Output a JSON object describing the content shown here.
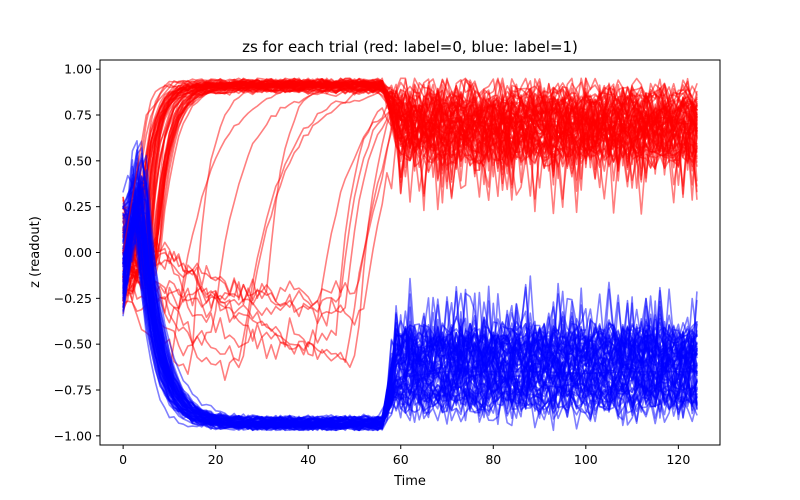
{
  "chart_data": {
    "type": "line",
    "title": "zs for each trial (red: label=0, blue: label=1)",
    "xlabel": "Time",
    "ylabel": "z (readout)",
    "xlim": [
      -5,
      129
    ],
    "ylim": [
      -1.05,
      1.05
    ],
    "x_ticks": [
      0,
      20,
      40,
      60,
      80,
      100,
      120
    ],
    "y_ticks": [
      -1.0,
      -0.75,
      -0.5,
      -0.25,
      0.0,
      0.25,
      0.5,
      0.75,
      1.0
    ],
    "x_tick_labels": [
      "0",
      "20",
      "40",
      "60",
      "80",
      "100",
      "120"
    ],
    "y_tick_labels": [
      "−1.00",
      "−0.75",
      "−0.50",
      "−0.25",
      "0.00",
      "0.25",
      "0.50",
      "0.75",
      "1.00"
    ],
    "grid": false,
    "legend": "none",
    "series_style": {
      "label0_color": "#ff0000",
      "label1_color": "#0000ff",
      "alpha": 0.5
    },
    "series": [
      {
        "label": "label=0",
        "color": "#ff0000",
        "x": [
          0,
          5,
          10,
          15,
          20,
          30,
          40,
          50,
          55,
          60,
          70,
          80,
          90,
          100,
          110,
          124
        ],
        "values": [
          0.0,
          0.75,
          0.9,
          0.92,
          0.92,
          0.92,
          0.92,
          0.92,
          0.88,
          0.72,
          0.72,
          0.7,
          0.72,
          0.7,
          0.72,
          0.7
        ]
      },
      {
        "label": "label=1",
        "color": "#0000ff",
        "x": [
          0,
          5,
          10,
          15,
          20,
          30,
          40,
          50,
          55,
          60,
          70,
          80,
          90,
          100,
          110,
          124
        ],
        "values": [
          0.0,
          0.1,
          -0.7,
          -0.92,
          -0.93,
          -0.94,
          -0.94,
          -0.93,
          -0.9,
          -0.68,
          -0.65,
          -0.65,
          -0.65,
          -0.66,
          -0.65,
          -0.65
        ]
      }
    ]
  }
}
